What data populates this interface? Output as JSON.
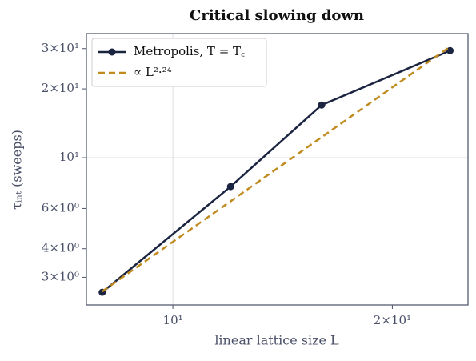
{
  "chart_data": {
    "type": "line",
    "title": "Critical slowing down",
    "x_label": "linear lattice size L",
    "y_label": "τᵢₙₜ (sweeps)",
    "x": [
      8,
      12,
      16,
      24
    ],
    "series": [
      {
        "name": "Metropolis, T = T꜀",
        "color": "#1b2440",
        "values": [
          2.58,
          7.48,
          17.0,
          29.4
        ],
        "marker": true,
        "dashed": false
      },
      {
        "name": "∝ L²·²⁴",
        "color": "#c08a1e",
        "values": [
          2.6,
          6.45,
          12.3,
          30.6
        ],
        "marker": false,
        "dashed": true
      }
    ],
    "xlog": true,
    "ylog": true,
    "xlim": [
      7.61,
      25.4
    ],
    "ylim": [
      2.27,
      34.9
    ],
    "xticks": [
      {
        "value": 10,
        "label": "10¹"
      },
      {
        "value": 20,
        "label": "2×10¹"
      }
    ],
    "yticks": [
      {
        "value": 3,
        "label": "3×10⁰"
      },
      {
        "value": 4,
        "label": "4×10⁰"
      },
      {
        "value": 6,
        "label": "6×10⁰"
      },
      {
        "value": 10,
        "label": "10¹"
      },
      {
        "value": 20,
        "label": "2×10¹"
      },
      {
        "value": 30,
        "label": "3×10¹"
      }
    ],
    "grid_values": [
      10
    ],
    "legend": "upper left"
  }
}
